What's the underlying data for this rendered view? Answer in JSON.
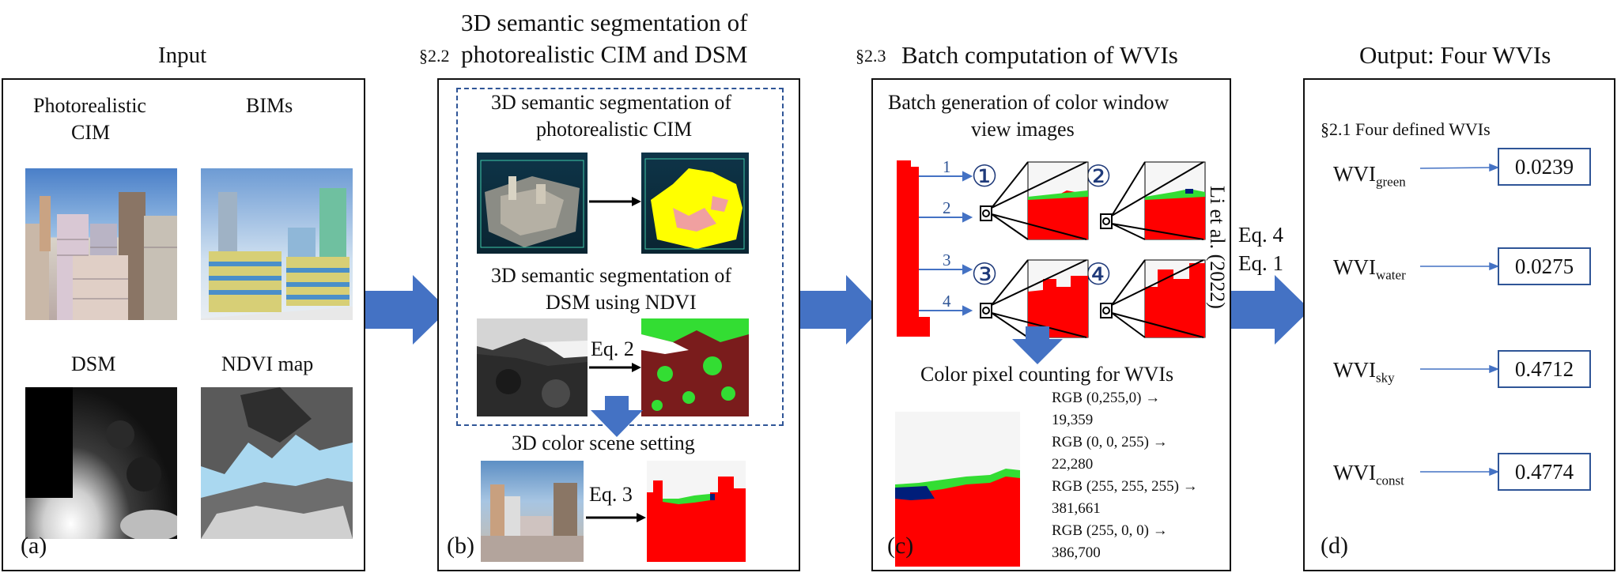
{
  "headers": {
    "input": "Input",
    "b_section": "§2.2",
    "b_title_line1": "3D semantic segmentation of",
    "b_title_line2": "photorealistic CIM and DSM",
    "c_section": "§2.3",
    "c_title": "Batch computation of WVIs",
    "output": "Output: Four WVIs"
  },
  "panel_a": {
    "photo_cim_line1": "Photorealistic",
    "photo_cim_line2": "CIM",
    "bims": "BIMs",
    "dsm": "DSM",
    "ndvi": "NDVI map",
    "label": "(a)"
  },
  "panel_b": {
    "seg_cim_line1": "3D semantic segmentation of",
    "seg_cim_line2": "photorealistic CIM",
    "seg_dsm_line1": "3D semantic segmentation of",
    "seg_dsm_line2": "DSM using NDVI",
    "eq2": "Eq. 2",
    "color_scene": "3D color scene setting",
    "eq3": "Eq. 3",
    "label": "(b)"
  },
  "panel_c": {
    "batch_line1": "Batch generation of color window",
    "batch_line2": "view images",
    "floors": [
      "1",
      "2",
      "3",
      "4"
    ],
    "circled": [
      "①",
      "②",
      "③",
      "④"
    ],
    "li_ref": "Li et al. (2022)",
    "pixel_counting": "Color pixel counting  for WVIs",
    "counts": [
      {
        "rgb": "RGB (0,255,0) →",
        "value": "19,359"
      },
      {
        "rgb": "RGB (0, 0, 255) →",
        "value": "22,280"
      },
      {
        "rgb": "RGB (255, 255, 255) →",
        "value": "381,661"
      },
      {
        "rgb": "RGB (255, 0, 0) →",
        "value": "386,700"
      }
    ],
    "label": "(c)"
  },
  "arrow_labels": {
    "eq4": "Eq. 4",
    "eq1": "Eq. 1"
  },
  "panel_d": {
    "subtitle": "§2.1 Four defined WVIs",
    "rows": [
      {
        "name": "WVI",
        "sub": "green",
        "value": "0.0239"
      },
      {
        "name": "WVI",
        "sub": "water",
        "value": "0.0275"
      },
      {
        "name": "WVI",
        "sub": "sky",
        "value": "0.4712"
      },
      {
        "name": "WVI",
        "sub": "const",
        "value": "0.4774"
      }
    ],
    "label": "(d)"
  },
  "colors": {
    "arrow_blue": "#4472c4",
    "segment_red": "#ff0000",
    "segment_green": "#33dd33",
    "segment_blue": "#001e7a",
    "segment_yellow": "#ffff00",
    "dsm_brown": "#7a1c1c",
    "sky_blue": "#aad8f0"
  },
  "icons": [
    "camera-icon",
    "arrow-right-icon",
    "arrow-down-icon"
  ]
}
